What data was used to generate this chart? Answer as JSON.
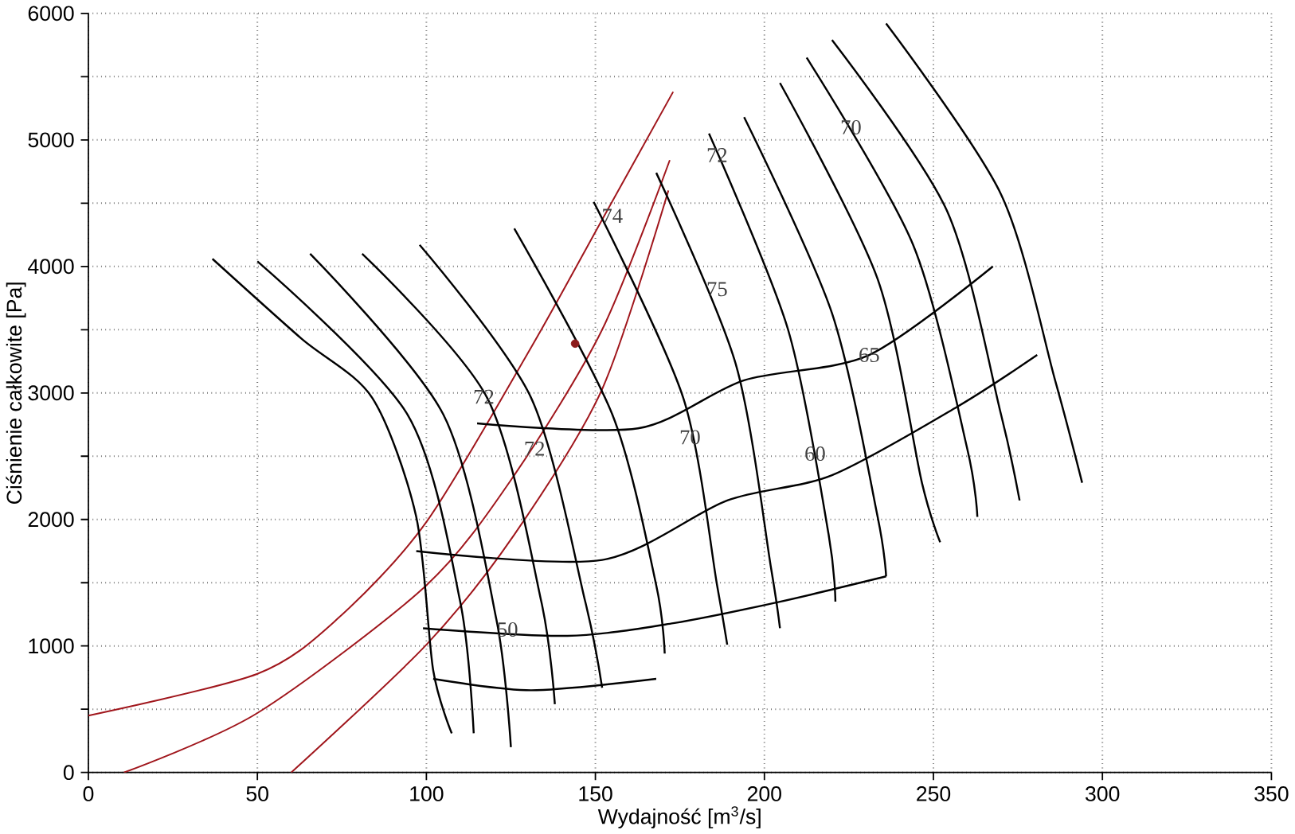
{
  "chart_data": {
    "type": "line",
    "xlabel": "Wydajność  [m$^{3}$/s]",
    "ylabel": "Ciśnienie całkowite  [Pa]",
    "xlim": [
      0,
      350
    ],
    "xticks": [
      0,
      50,
      100,
      150,
      200,
      250,
      300,
      350
    ],
    "ylim": [
      0,
      6000
    ],
    "yticks": [
      0,
      {
        "value": 500,
        "label": null
      },
      1000,
      {
        "value": 1500,
        "label": null
      },
      2000,
      {
        "value": 2500,
        "label": null
      },
      3000,
      {
        "value": 3500,
        "label": null
      },
      4000,
      {
        "value": 4500,
        "label": null
      },
      5000,
      {
        "value": 5500,
        "label": null
      },
      6000
    ],
    "grid": true,
    "line_style": "solid",
    "series": [
      {
        "color": "#a0161c",
        "x": [
          0,
          50,
          73.5,
          100,
          131,
          152,
          173
        ],
        "values": [
          450,
          780,
          1210,
          1980,
          3360,
          4370,
          5380
        ]
      },
      {
        "color": "#a0161c",
        "x": [
          10.5,
          50,
          100,
          126,
          152,
          172
        ],
        "values": [
          0,
          470,
          1480,
          2350,
          3500,
          4840
        ]
      },
      {
        "color": "#a0161c",
        "x": [
          60,
          100,
          126,
          152,
          171.6
        ],
        "values": [
          0,
          1010,
          1880,
          3030,
          4600
        ]
      },
      {
        "color": "#000000",
        "x": [
          36.7,
          63,
          84,
          97,
          102,
          107.5
        ],
        "values": [
          4060,
          3430,
          2960,
          2020,
          810,
          310
        ]
      },
      {
        "color": "#000000",
        "x": [
          50,
          94.4,
          110,
          114
        ],
        "values": [
          4040,
          2830,
          1350,
          310
        ]
      },
      {
        "color": "#000000",
        "x": [
          65.6,
          105,
          120.7,
          125
        ],
        "values": [
          4100,
          2830,
          1210,
          200
        ]
      },
      {
        "color": "#000000",
        "x": [
          81,
          118,
          134,
          138
        ],
        "values": [
          4100,
          2960,
          1350,
          540
        ]
      },
      {
        "color": "#000000",
        "x": [
          98,
          131,
          147,
          152
        ],
        "values": [
          4170,
          2960,
          1350,
          670
        ]
      },
      {
        "color": "#000000",
        "x": [
          126,
          155,
          168,
          170.5
        ],
        "values": [
          4300,
          2830,
          1480,
          940
        ]
      },
      {
        "color": "#000000",
        "x": [
          149.5,
          176,
          186,
          189
        ],
        "values": [
          4510,
          2960,
          1480,
          1010
        ]
      },
      {
        "color": "#000000",
        "x": [
          168,
          191.5,
          202,
          204.6
        ],
        "values": [
          4740,
          3230,
          1610,
          1140
        ]
      },
      {
        "color": "#000000",
        "x": [
          183.6,
          207,
          219,
          221
        ],
        "values": [
          5050,
          3500,
          1880,
          1350
        ]
      },
      {
        "color": "#000000",
        "x": [
          194,
          220,
          233.5,
          236
        ],
        "values": [
          5180,
          3630,
          2020,
          1550
        ]
      },
      {
        "color": "#000000",
        "x": [
          204.6,
          233.5,
          246.6,
          252
        ],
        "values": [
          5450,
          3900,
          2290,
          1820
        ]
      },
      {
        "color": "#000000",
        "x": [
          212.5,
          244,
          260,
          263
        ],
        "values": [
          5650,
          4170,
          2560,
          2020
        ]
      },
      {
        "color": "#000000",
        "x": [
          220,
          254,
          270,
          275.5
        ],
        "values": [
          5790,
          4440,
          2830,
          2150
        ]
      },
      {
        "color": "#000000",
        "x": [
          236,
          270,
          286,
          294
        ],
        "values": [
          5920,
          4570,
          3100,
          2290
        ]
      },
      {
        "color": "#000000",
        "x": [
          102,
          131,
          168
        ],
        "values": [
          740,
          650,
          740
        ]
      },
      {
        "color": "#000000",
        "x": [
          99,
          141.7,
          173,
          204.6,
          236
        ],
        "values": [
          1140,
          1080,
          1180,
          1350,
          1550
        ]
      },
      {
        "color": "#000000",
        "x": [
          97,
          152,
          189,
          220,
          257,
          280.7
        ],
        "values": [
          1750,
          1680,
          2150,
          2350,
          2890,
          3300
        ]
      },
      {
        "color": "#000000",
        "x": [
          115,
          162.6,
          194,
          231,
          267.6
        ],
        "values": [
          2760,
          2720,
          3100,
          3300,
          4000
        ]
      },
      {
        "type": "scatter",
        "color": "#8b1a1a",
        "x": [
          144
        ],
        "values": [
          3390
        ]
      }
    ],
    "annotations": [
      {
        "text": "74",
        "x": 155,
        "y": 4400
      },
      {
        "text": "75",
        "x": 186,
        "y": 3820
      },
      {
        "text": "72",
        "x": 186,
        "y": 4880
      },
      {
        "text": "70",
        "x": 225.6,
        "y": 5100
      },
      {
        "text": "65",
        "x": 231,
        "y": 3300
      },
      {
        "text": "60",
        "x": 215,
        "y": 2520
      },
      {
        "text": "70",
        "x": 178,
        "y": 2650
      },
      {
        "text": "72",
        "x": 117,
        "y": 2970
      },
      {
        "text": "72",
        "x": 132,
        "y": 2560
      },
      {
        "text": "50",
        "x": 124,
        "y": 1130
      }
    ]
  }
}
